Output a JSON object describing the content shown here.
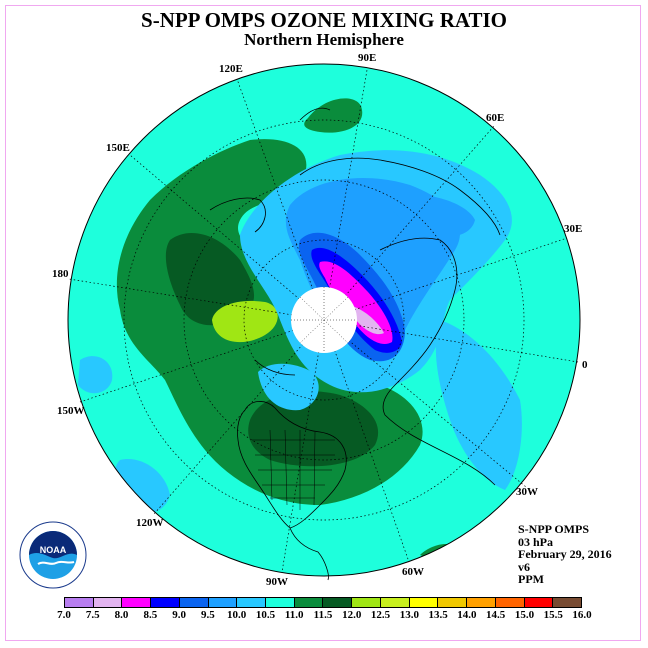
{
  "title": "S-NPP OMPS OZONE MIXING RATIO",
  "subtitle": "Northern Hemisphere",
  "longitude_labels": {
    "e90": "90E",
    "e60": "60E",
    "e30": "30E",
    "zero": "0",
    "w30": "30W",
    "w60": "60W",
    "w90": "90W",
    "w120": "120W",
    "w150": "150W",
    "d180": "180",
    "e150": "150E",
    "e120": "120E"
  },
  "info": {
    "instrument": "S-NPP OMPS",
    "level": "03 hPa",
    "date": "February 29, 2016",
    "version": "v6",
    "units": "PPM"
  },
  "colorbar": {
    "ticks": [
      "7.0",
      "7.5",
      "8.0",
      "8.5",
      "9.0",
      "9.5",
      "10.0",
      "10.5",
      "11.0",
      "11.5",
      "12.0",
      "12.5",
      "13.0",
      "13.5",
      "14.0",
      "14.5",
      "15.0",
      "15.5",
      "16.0"
    ],
    "colors": [
      "#b87ef0",
      "#e2b4f0",
      "#ff00ff",
      "#0000ff",
      "#0a64f0",
      "#1ea0ff",
      "#28c8ff",
      "#1effdc",
      "#0a8c3c",
      "#065a23",
      "#a0e614",
      "#c8f01e",
      "#ffff00",
      "#f0c800",
      "#ffa000",
      "#ff6400",
      "#ff0000",
      "#784b32"
    ]
  },
  "logo": {
    "text": "NOAA"
  }
}
